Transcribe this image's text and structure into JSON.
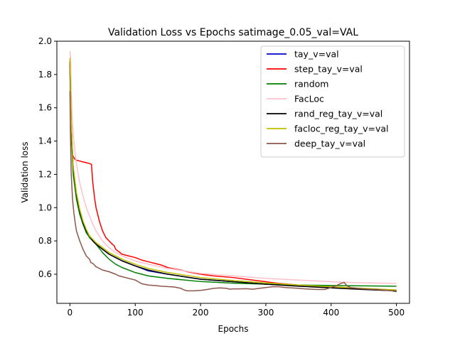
{
  "chart_data": {
    "type": "line",
    "title": "Validation Loss vs Epochs satimage_0.05_val=VAL",
    "xlabel": "Epochs",
    "ylabel": "Validation loss",
    "xlim": [
      -20,
      520
    ],
    "ylim": [
      0.425,
      2.0
    ],
    "xticks": [
      0,
      100,
      200,
      300,
      400,
      500
    ],
    "yticks": [
      0.6,
      0.8,
      1.0,
      1.2,
      1.4,
      1.6,
      1.8,
      2.0
    ],
    "xtick_labels": [
      "0",
      "100",
      "200",
      "300",
      "400",
      "500"
    ],
    "ytick_labels": [
      "0.6",
      "0.8",
      "1.0",
      "1.2",
      "1.4",
      "1.6",
      "1.8",
      "2.0"
    ],
    "grid": false,
    "legend_position": "top-right",
    "series": [
      {
        "name": "tay_v=val",
        "color": "#0000cc",
        "x": [
          0,
          2,
          5,
          10,
          15,
          20,
          25,
          30,
          35,
          40,
          50,
          60,
          70,
          80,
          100,
          120,
          150,
          200,
          250,
          300,
          350,
          400,
          450,
          500
        ],
        "y": [
          1.87,
          1.5,
          1.23,
          1.08,
          0.98,
          0.91,
          0.86,
          0.83,
          0.8,
          0.78,
          0.75,
          0.72,
          0.7,
          0.68,
          0.65,
          0.62,
          0.6,
          0.57,
          0.555,
          0.54,
          0.53,
          0.52,
          0.51,
          0.5
        ]
      },
      {
        "name": "step_tay_v=val",
        "color": "#ff0000",
        "x": [
          0,
          1,
          2,
          4,
          6,
          8,
          10,
          15,
          20,
          25,
          30,
          33,
          35,
          38,
          40,
          45,
          50,
          55,
          60,
          65,
          68,
          70,
          75,
          80,
          90,
          100,
          110,
          120,
          130,
          140,
          150,
          160,
          170,
          180,
          200,
          220,
          250,
          280,
          300,
          320,
          350,
          380,
          400,
          420,
          450,
          480,
          500
        ],
        "y": [
          1.86,
          1.6,
          1.42,
          1.32,
          1.3,
          1.29,
          1.285,
          1.28,
          1.275,
          1.27,
          1.265,
          1.26,
          1.15,
          1.05,
          1.0,
          0.92,
          0.86,
          0.82,
          0.8,
          0.78,
          0.77,
          0.75,
          0.735,
          0.72,
          0.71,
          0.7,
          0.685,
          0.675,
          0.665,
          0.655,
          0.64,
          0.632,
          0.625,
          0.615,
          0.6,
          0.59,
          0.58,
          0.565,
          0.555,
          0.545,
          0.535,
          0.53,
          0.525,
          0.52,
          0.513,
          0.508,
          0.505
        ]
      },
      {
        "name": "random",
        "color": "#008000",
        "x": [
          0,
          2,
          5,
          10,
          15,
          20,
          25,
          30,
          35,
          40,
          50,
          60,
          70,
          80,
          100,
          120,
          150,
          200,
          250,
          300,
          350,
          400,
          450,
          500
        ],
        "y": [
          1.82,
          1.45,
          1.2,
          1.05,
          0.96,
          0.9,
          0.85,
          0.82,
          0.8,
          0.78,
          0.73,
          0.69,
          0.66,
          0.64,
          0.61,
          0.59,
          0.575,
          0.556,
          0.546,
          0.54,
          0.535,
          0.532,
          0.53,
          0.528
        ]
      },
      {
        "name": "FacLoc",
        "color": "#ffc0cb",
        "x": [
          0,
          1,
          2,
          4,
          6,
          8,
          10,
          15,
          20,
          25,
          30,
          35,
          40,
          50,
          60,
          70,
          80,
          90,
          100,
          120,
          150,
          200,
          250,
          300,
          350,
          400,
          450,
          500
        ],
        "y": [
          1.94,
          1.9,
          1.7,
          1.5,
          1.4,
          1.33,
          1.26,
          1.15,
          1.07,
          1.0,
          0.95,
          0.9,
          0.86,
          0.8,
          0.76,
          0.73,
          0.71,
          0.695,
          0.68,
          0.66,
          0.635,
          0.605,
          0.59,
          0.575,
          0.565,
          0.555,
          0.548,
          0.545
        ]
      },
      {
        "name": "rand_reg_tay_v=val",
        "color": "#000000",
        "x": [
          0,
          2,
          5,
          10,
          15,
          20,
          25,
          30,
          35,
          40,
          50,
          60,
          70,
          80,
          100,
          120,
          150,
          200,
          250,
          300,
          350,
          400,
          450,
          500
        ],
        "y": [
          1.88,
          1.5,
          1.24,
          1.08,
          0.98,
          0.91,
          0.86,
          0.83,
          0.8,
          0.78,
          0.75,
          0.72,
          0.7,
          0.68,
          0.65,
          0.625,
          0.6,
          0.57,
          0.555,
          0.54,
          0.528,
          0.518,
          0.508,
          0.5
        ]
      },
      {
        "name": "facloc_reg_tay_v=val",
        "color": "#bfbf00",
        "x": [
          0,
          2,
          5,
          10,
          15,
          20,
          25,
          30,
          35,
          40,
          50,
          60,
          70,
          80,
          100,
          120,
          150,
          200,
          250,
          300,
          350,
          400,
          450,
          500
        ],
        "y": [
          1.9,
          1.52,
          1.25,
          1.09,
          0.99,
          0.92,
          0.87,
          0.83,
          0.81,
          0.79,
          0.76,
          0.73,
          0.71,
          0.69,
          0.66,
          0.635,
          0.61,
          0.58,
          0.562,
          0.548,
          0.535,
          0.525,
          0.515,
          0.505
        ]
      },
      {
        "name": "deep_tay_v=val",
        "color": "#8c564b",
        "x": [
          0,
          1,
          2,
          4,
          6,
          8,
          10,
          15,
          20,
          25,
          30,
          32,
          35,
          40,
          50,
          60,
          70,
          75,
          80,
          100,
          110,
          120,
          130,
          140,
          160,
          170,
          175,
          180,
          190,
          200,
          210,
          220,
          230,
          240,
          245,
          250,
          260,
          270,
          280,
          290,
          300,
          310,
          320,
          330,
          340,
          350,
          360,
          370,
          380,
          390,
          400,
          410,
          415,
          420,
          425,
          430,
          440,
          450,
          460,
          470,
          480,
          490,
          500
        ],
        "y": [
          1.7,
          1.4,
          1.2,
          1.05,
          0.97,
          0.91,
          0.86,
          0.8,
          0.75,
          0.71,
          0.69,
          0.67,
          0.665,
          0.645,
          0.625,
          0.615,
          0.6,
          0.59,
          0.585,
          0.565,
          0.543,
          0.535,
          0.532,
          0.528,
          0.523,
          0.515,
          0.505,
          0.5,
          0.5,
          0.503,
          0.508,
          0.515,
          0.518,
          0.515,
          0.51,
          0.512,
          0.512,
          0.513,
          0.51,
          0.515,
          0.52,
          0.525,
          0.525,
          0.52,
          0.518,
          0.515,
          0.512,
          0.51,
          0.508,
          0.508,
          0.52,
          0.535,
          0.545,
          0.55,
          0.528,
          0.52,
          0.515,
          0.512,
          0.51,
          0.508,
          0.505,
          0.502,
          0.495
        ]
      }
    ]
  }
}
